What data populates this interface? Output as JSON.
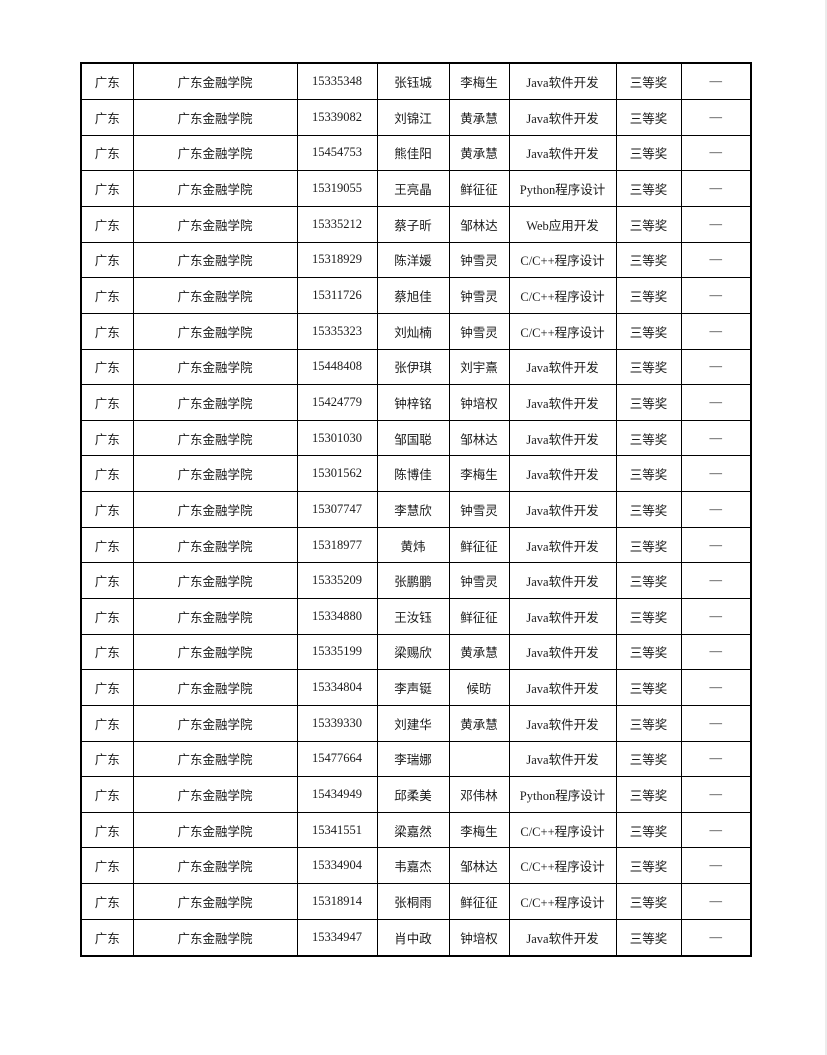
{
  "page": {
    "background_color": "#ffffff",
    "border_color": "#000000",
    "text_color": "#1a1a1a",
    "table": {
      "rows": [
        [
          "广东",
          "广东金融学院",
          "15335348",
          "张钰城",
          "李梅生",
          "Java软件开发",
          "三等奖",
          "—"
        ],
        [
          "广东",
          "广东金融学院",
          "15339082",
          "刘锦江",
          "黄承慧",
          "Java软件开发",
          "三等奖",
          "—"
        ],
        [
          "广东",
          "广东金融学院",
          "15454753",
          "熊佳阳",
          "黄承慧",
          "Java软件开发",
          "三等奖",
          "—"
        ],
        [
          "广东",
          "广东金融学院",
          "15319055",
          "王亮晶",
          "鲜征征",
          "Python程序设计",
          "三等奖",
          "—"
        ],
        [
          "广东",
          "广东金融学院",
          "15335212",
          "蔡子昕",
          "邹林达",
          "Web应用开发",
          "三等奖",
          "—"
        ],
        [
          "广东",
          "广东金融学院",
          "15318929",
          "陈洋媛",
          "钟雪灵",
          "C/C++程序设计",
          "三等奖",
          "—"
        ],
        [
          "广东",
          "广东金融学院",
          "15311726",
          "蔡旭佳",
          "钟雪灵",
          "C/C++程序设计",
          "三等奖",
          "—"
        ],
        [
          "广东",
          "广东金融学院",
          "15335323",
          "刘灿楠",
          "钟雪灵",
          "C/C++程序设计",
          "三等奖",
          "—"
        ],
        [
          "广东",
          "广东金融学院",
          "15448408",
          "张伊琪",
          "刘宇熹",
          "Java软件开发",
          "三等奖",
          "—"
        ],
        [
          "广东",
          "广东金融学院",
          "15424779",
          "钟梓铭",
          "钟培权",
          "Java软件开发",
          "三等奖",
          "—"
        ],
        [
          "广东",
          "广东金融学院",
          "15301030",
          "邹国聪",
          "邹林达",
          "Java软件开发",
          "三等奖",
          "—"
        ],
        [
          "广东",
          "广东金融学院",
          "15301562",
          "陈博佳",
          "李梅生",
          "Java软件开发",
          "三等奖",
          "—"
        ],
        [
          "广东",
          "广东金融学院",
          "15307747",
          "李慧欣",
          "钟雪灵",
          "Java软件开发",
          "三等奖",
          "—"
        ],
        [
          "广东",
          "广东金融学院",
          "15318977",
          "黄炜",
          "鲜征征",
          "Java软件开发",
          "三等奖",
          "—"
        ],
        [
          "广东",
          "广东金融学院",
          "15335209",
          "张鹏鹏",
          "钟雪灵",
          "Java软件开发",
          "三等奖",
          "—"
        ],
        [
          "广东",
          "广东金融学院",
          "15334880",
          "王汝钰",
          "鲜征征",
          "Java软件开发",
          "三等奖",
          "—"
        ],
        [
          "广东",
          "广东金融学院",
          "15335199",
          "梁赐欣",
          "黄承慧",
          "Java软件开发",
          "三等奖",
          "—"
        ],
        [
          "广东",
          "广东金融学院",
          "15334804",
          "李声铤",
          "候昉",
          "Java软件开发",
          "三等奖",
          "—"
        ],
        [
          "广东",
          "广东金融学院",
          "15339330",
          "刘建华",
          "黄承慧",
          "Java软件开发",
          "三等奖",
          "—"
        ],
        [
          "广东",
          "广东金融学院",
          "15477664",
          "李瑞娜",
          "",
          "Java软件开发",
          "三等奖",
          "—"
        ],
        [
          "广东",
          "广东金融学院",
          "15434949",
          "邱柔美",
          "邓伟林",
          "Python程序设计",
          "三等奖",
          "—"
        ],
        [
          "广东",
          "广东金融学院",
          "15341551",
          "梁嘉然",
          "李梅生",
          "C/C++程序设计",
          "三等奖",
          "—"
        ],
        [
          "广东",
          "广东金融学院",
          "15334904",
          "韦嘉杰",
          "邹林达",
          "C/C++程序设计",
          "三等奖",
          "—"
        ],
        [
          "广东",
          "广东金融学院",
          "15318914",
          "张桐雨",
          "鲜征征",
          "C/C++程序设计",
          "三等奖",
          "—"
        ],
        [
          "广东",
          "广东金融学院",
          "15334947",
          "肖中政",
          "钟培权",
          "Java软件开发",
          "三等奖",
          "—"
        ]
      ]
    }
  }
}
